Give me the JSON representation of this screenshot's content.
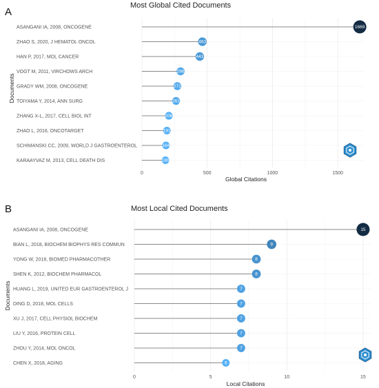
{
  "panels": [
    {
      "label": "A",
      "colors": {
        "low": "#56B1F7",
        "high": "#132B43",
        "stem": "#888888",
        "grid": "#ebebeb"
      },
      "chart_data": {
        "type": "lollipop",
        "title": "Most Global Cited Documents",
        "xlabel": "Global Citations",
        "ylabel": "Documents",
        "xlim": [
          0,
          1700
        ],
        "xticks": [
          0,
          500,
          1000,
          1500
        ],
        "grid": true,
        "categories": [
          "ASANGANI IA, 2008, ONCOGENE",
          "ZHAO S, 2020, J HEMATOL ONCOL",
          "HAN P, 2017, MOL CANCER",
          "VOGT M, 2011, VIRCHOWS ARCH",
          "GRADY WM, 2008, ONCOGENE",
          "TOIYAMA Y, 2014, ANN SURG",
          "ZHANG X-L, 2017, CELL BIOL INT",
          "ZHAO L, 2016, ONCOTARGET",
          "SCHIMANSKI CC, 2009, WORLD J GASTROENTEROL",
          "KARAAYVAZ M, 2013, CELL DEATH DIS"
        ],
        "values": [
          1669,
          463,
          443,
          296,
          271,
          261,
          206,
          191,
          184,
          180
        ],
        "value_labels": [
          "1669",
          "463",
          "443",
          "296",
          "271",
          "261",
          "206",
          "191",
          "184",
          "180"
        ]
      }
    },
    {
      "label": "B",
      "colors": {
        "low": "#56B1F7",
        "high": "#132B43",
        "stem": "#888888",
        "grid": "#ebebeb"
      },
      "chart_data": {
        "type": "lollipop",
        "title": "Most Local Cited Documents",
        "xlabel": "Local Citations",
        "ylabel": "Documents",
        "xlim": [
          0,
          15.5
        ],
        "xticks": [
          0,
          5,
          10,
          15
        ],
        "grid": true,
        "categories": [
          "ASANGANI IA, 2008, ONCOGENE",
          "BIAN L, 2018, BIOCHEM BIOPHYS RES COMMUN",
          "YONG W, 2018, BIOMED PHARMACOTHER",
          "SHEN K, 2012, BIOCHEM PHARMACOL",
          "HUANG L, 2019, UNITED EUR GASTROENTEROL J",
          "DING D, 2018, MOL CELLS",
          "XU J, 2017, CELL PHYSIOL BIOCHEM",
          "LIU Y, 2016, PROTEIN CELL",
          "ZHOU Y, 2014, MOL ONCOL",
          "CHEN X, 2018, AGING"
        ],
        "values": [
          15,
          9,
          8,
          8,
          7,
          7,
          7,
          7,
          7,
          6
        ],
        "value_labels": [
          "15",
          "9",
          "8",
          "8",
          "7",
          "7",
          "7",
          "7",
          "7",
          "6"
        ]
      }
    }
  ]
}
